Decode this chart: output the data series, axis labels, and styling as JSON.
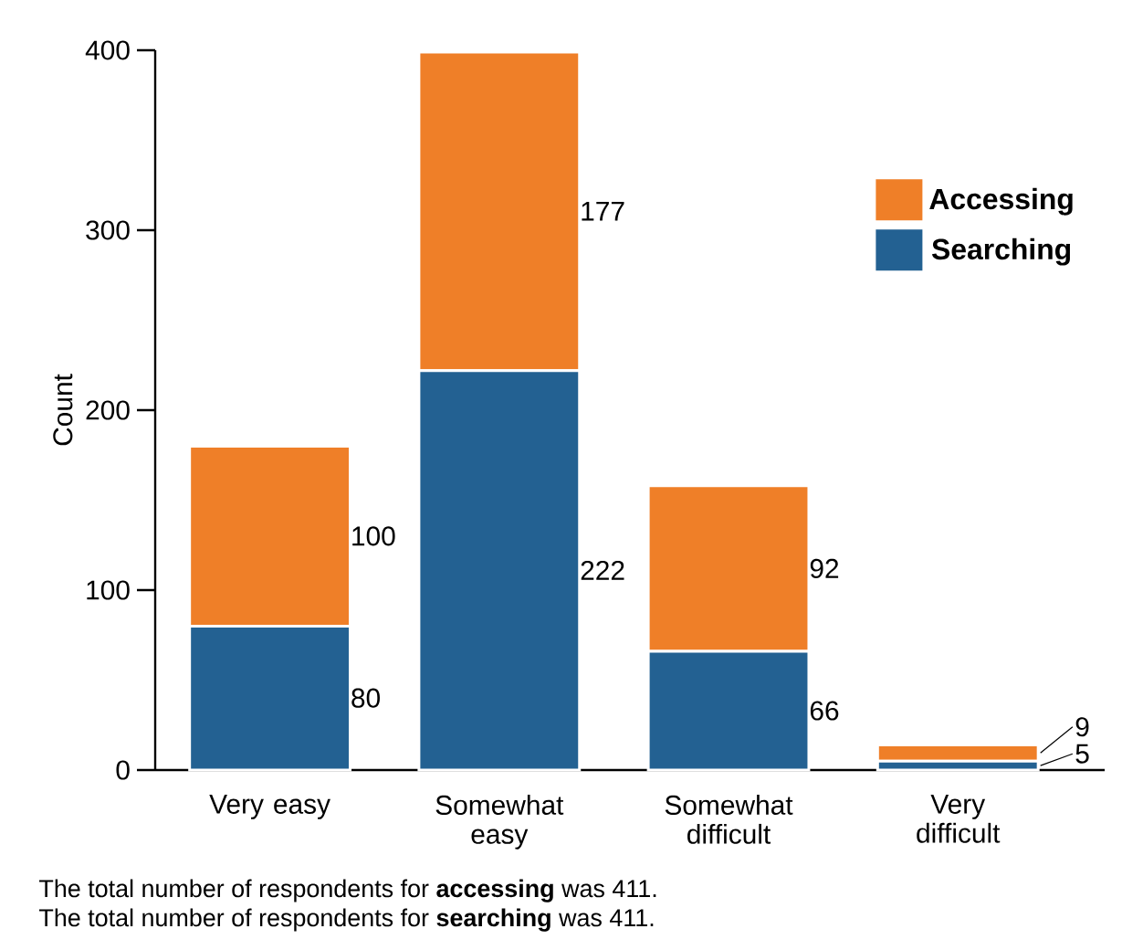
{
  "chart_data": {
    "type": "bar",
    "stacked": true,
    "ylabel": "Count",
    "categories": [
      "Very easy",
      "Somewhat easy",
      "Somewhat difficult",
      "Very difficult"
    ],
    "series": [
      {
        "name": "Searching",
        "color": "#236192",
        "values": [
          80,
          222,
          66,
          5
        ]
      },
      {
        "name": "Accessing",
        "color": "#ef7f28",
        "values": [
          100,
          177,
          92,
          9
        ]
      }
    ],
    "ylim": [
      0,
      400
    ],
    "yticks": [
      0,
      100,
      200,
      300,
      400
    ],
    "legend": "top right",
    "data_labels": true,
    "annotations": [
      "The total number of respondents for **accessing** was 411.",
      "The total number of respondents for **searching** was 411."
    ]
  }
}
